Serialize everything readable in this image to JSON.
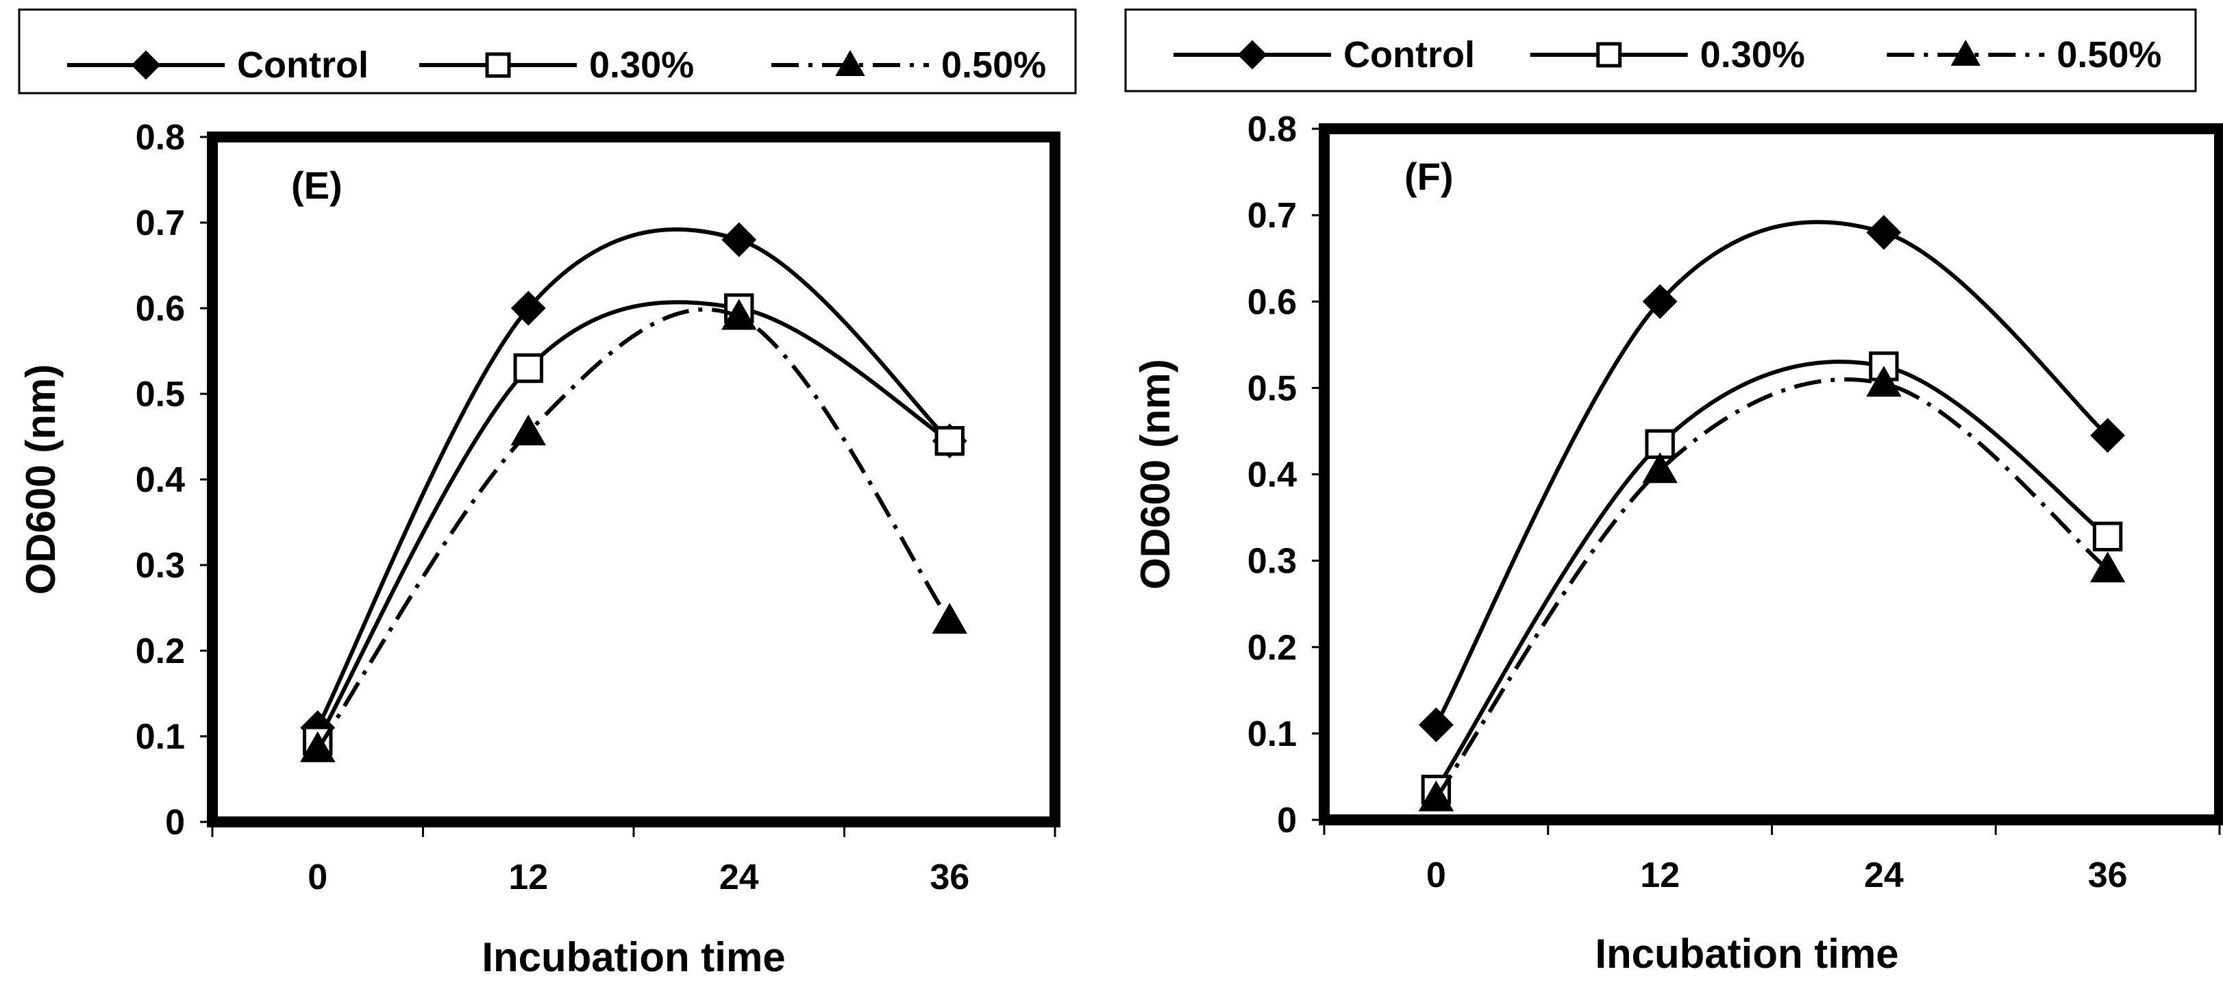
{
  "colors": {
    "line": "#000000",
    "background": "#ffffff"
  },
  "chart_data": [
    {
      "type": "line",
      "panel_label": "(E)",
      "title": "",
      "xlabel": "Incubation time",
      "ylabel": "OD600 (nm)",
      "categories": [
        "0",
        "12",
        "24",
        "36"
      ],
      "x": [
        0,
        12,
        24,
        36
      ],
      "ylim": [
        0,
        0.8
      ],
      "yticks": [
        "0",
        "0.1",
        "0.2",
        "0.3",
        "0.4",
        "0.5",
        "0.6",
        "0.7",
        "0.8"
      ],
      "grid": false,
      "legend_position": "top, outside",
      "series": [
        {
          "name": "Control",
          "marker": "diamond",
          "line": "solid",
          "values": [
            0.11,
            0.6,
            0.68,
            0.445
          ]
        },
        {
          "name": "0.30%",
          "marker": "square-open",
          "line": "solid",
          "values": [
            0.095,
            0.53,
            0.6,
            0.445
          ]
        },
        {
          "name": "0.50%",
          "marker": "triangle",
          "line": "dash-dot",
          "values": [
            0.085,
            0.455,
            0.59,
            0.235
          ]
        }
      ]
    },
    {
      "type": "line",
      "panel_label": "(F)",
      "title": "",
      "xlabel": "Incubation time",
      "ylabel": "OD600 (nm)",
      "categories": [
        "0",
        "12",
        "24",
        "36"
      ],
      "x": [
        0,
        12,
        24,
        36
      ],
      "ylim": [
        0,
        0.8
      ],
      "yticks": [
        "0",
        "0.1",
        "0.2",
        "0.3",
        "0.4",
        "0.5",
        "0.6",
        "0.7",
        "0.8"
      ],
      "grid": false,
      "legend_position": "top, outside",
      "series": [
        {
          "name": "Control",
          "marker": "diamond",
          "line": "solid",
          "values": [
            0.11,
            0.6,
            0.68,
            0.445
          ]
        },
        {
          "name": "0.30%",
          "marker": "square-open",
          "line": "solid",
          "values": [
            0.035,
            0.435,
            0.525,
            0.328
          ]
        },
        {
          "name": "0.50%",
          "marker": "triangle",
          "line": "dash-dot",
          "values": [
            0.025,
            0.405,
            0.505,
            0.29
          ]
        }
      ]
    }
  ]
}
